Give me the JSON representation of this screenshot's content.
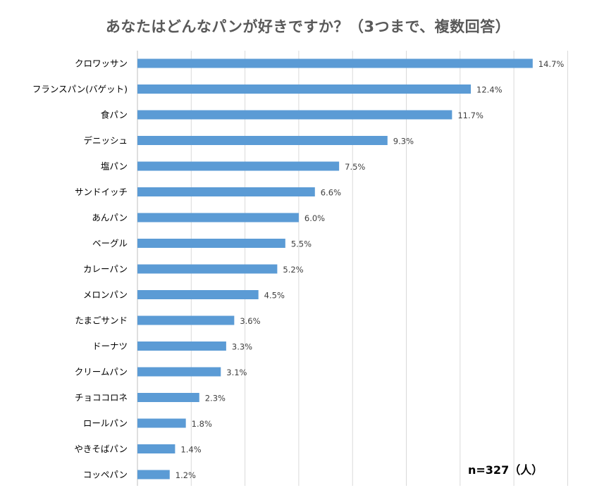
{
  "title": "あなたはどんなパンが好きですか？（3つまで、複数回答）",
  "sample_note": "n=327（人）",
  "chart_data": {
    "type": "bar",
    "orientation": "horizontal",
    "title": "あなたはどんなパンが好きですか？（3つまで、複数回答）",
    "xlabel": "",
    "ylabel": "",
    "unit": "%",
    "xlim": [
      0,
      16
    ],
    "grid": true,
    "bar_color": "#5B9BD5",
    "categories": [
      "クロワッサン",
      "フランスパン(バゲット)",
      "食パン",
      "デニッシュ",
      "塩パン",
      "サンドイッチ",
      "あんパン",
      "ベーグル",
      "カレーパン",
      "メロンパン",
      "たまごサンド",
      "ドーナツ",
      "クリームパン",
      "チョココロネ",
      "ロールパン",
      "やきそばパン",
      "コッペパン"
    ],
    "values": [
      14.7,
      12.4,
      11.7,
      9.3,
      7.5,
      6.6,
      6.0,
      5.5,
      5.2,
      4.5,
      3.6,
      3.3,
      3.1,
      2.3,
      1.8,
      1.4,
      1.2
    ],
    "value_labels": [
      "14.7%",
      "12.4%",
      "11.7%",
      "9.3%",
      "7.5%",
      "6.6%",
      "6.0%",
      "5.5%",
      "5.2%",
      "4.5%",
      "3.6%",
      "3.3%",
      "3.1%",
      "2.3%",
      "1.8%",
      "1.4%",
      "1.2%"
    ]
  }
}
